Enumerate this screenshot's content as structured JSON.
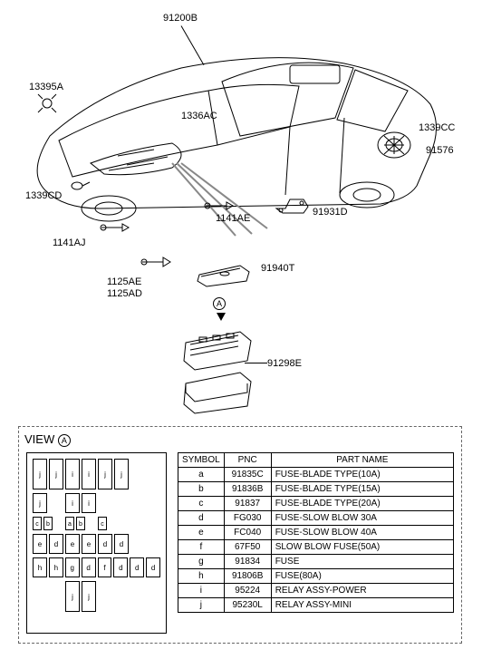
{
  "callouts": {
    "c91200B": "91200B",
    "c13395A": "13395A",
    "c1336AC": "1336AC",
    "c1339CD": "1339CD",
    "c1141AJ": "1141AJ",
    "c1141AE": "1141AE",
    "c1125AE": "1125AE",
    "c1125AD": "1125AD",
    "c1339CC": "1339CC",
    "c91576": "91576",
    "c91931D": "91931D",
    "c91940T": "91940T",
    "c91298E": "91298E"
  },
  "detail": {
    "viewLabel": "VIEW",
    "symA": "A",
    "table": {
      "headers": [
        "SYMBOL",
        "PNC",
        "PART NAME"
      ],
      "rows": [
        [
          "a",
          "91835C",
          "FUSE-BLADE TYPE(10A)"
        ],
        [
          "b",
          "91836B",
          "FUSE-BLADE TYPE(15A)"
        ],
        [
          "c",
          "91837",
          "FUSE-BLADE TYPE(20A)"
        ],
        [
          "d",
          "FG030",
          "FUSE-SLOW BLOW 30A"
        ],
        [
          "e",
          "FC040",
          "FUSE-SLOW BLOW 40A"
        ],
        [
          "f",
          "67F50",
          "SLOW BLOW FUSE(50A)"
        ],
        [
          "g",
          "91834",
          "FUSE"
        ],
        [
          "h",
          "91806B",
          "FUSE(80A)"
        ],
        [
          "i",
          "95224",
          "RELAY ASSY-POWER"
        ],
        [
          "j",
          "95230L",
          "RELAY ASSY-MINI"
        ]
      ]
    },
    "fuseLayout": {
      "row1": [
        "j",
        "j",
        "i",
        "i",
        "j",
        "j"
      ],
      "row2": [
        "j",
        "",
        "i",
        "i",
        "",
        ""
      ],
      "row3": [
        "cb",
        "a",
        "b",
        "c"
      ],
      "row4": [
        "e",
        "d",
        "e",
        "e",
        "d",
        "d"
      ],
      "row5": [
        "h",
        "h",
        "g",
        "d",
        "f",
        "d",
        "d",
        "d"
      ],
      "row6": [
        "",
        "",
        "j",
        "j"
      ]
    }
  },
  "colors": {
    "line": "#000000",
    "bg": "#ffffff",
    "dash": "#666666"
  }
}
